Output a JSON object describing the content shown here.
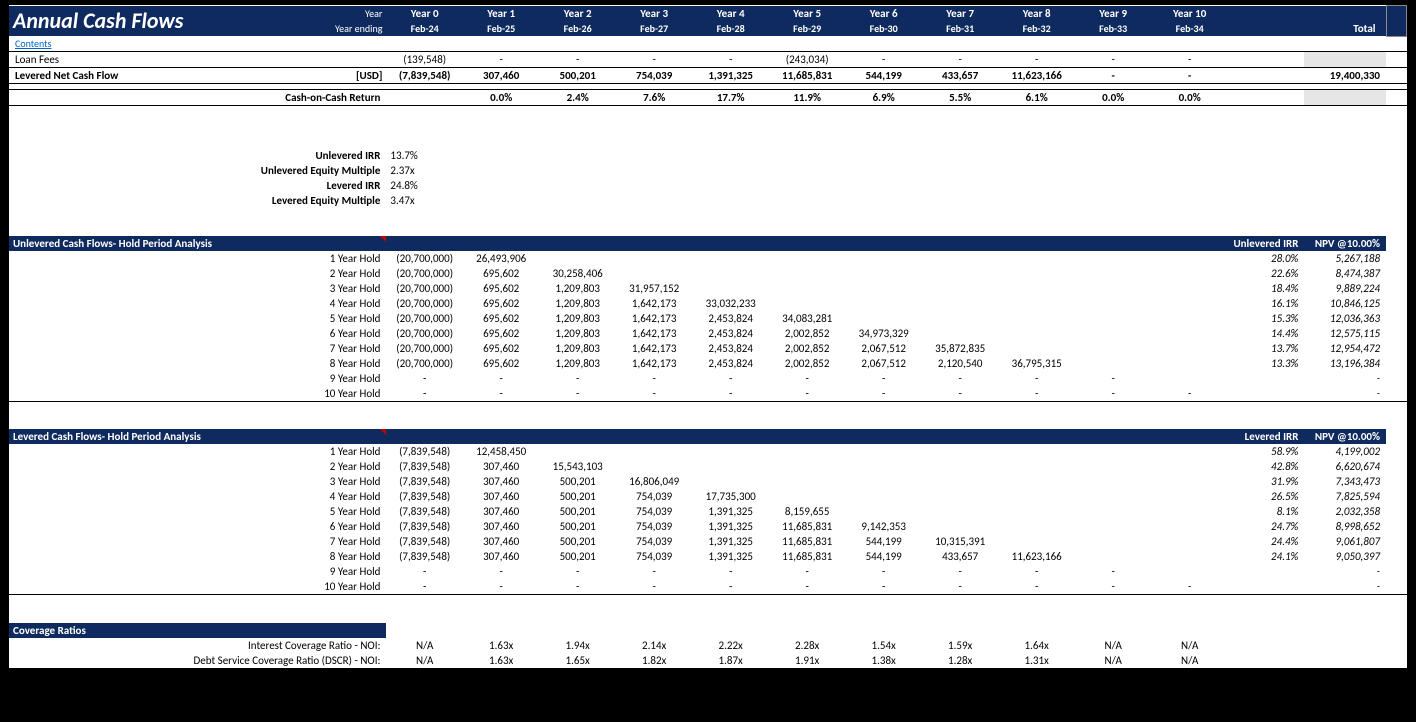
{
  "header": {
    "title": "Annual Cash Flows",
    "year_label": "Year",
    "year_ending_label": "Year ending",
    "contents": "Contents",
    "years": [
      "Year 0",
      "Year 1",
      "Year 2",
      "Year 3",
      "Year 4",
      "Year 5",
      "Year 6",
      "Year 7",
      "Year 8",
      "Year 9",
      "Year 10"
    ],
    "dates": [
      "Feb-24",
      "Feb-25",
      "Feb-26",
      "Feb-27",
      "Feb-28",
      "Feb-29",
      "Feb-30",
      "Feb-31",
      "Feb-32",
      "Feb-33",
      "Feb-34"
    ],
    "total": "Total"
  },
  "loan_fees": {
    "label": "Loan Fees",
    "values": [
      "(139,548)",
      "-",
      "-",
      "-",
      "-",
      "(243,034)",
      "-",
      "-",
      "-",
      "-",
      "-"
    ]
  },
  "levered_ncf": {
    "label": "Levered Net Cash Flow",
    "unit": "[USD]",
    "values": [
      "(7,839,548)",
      "307,460",
      "500,201",
      "754,039",
      "1,391,325",
      "11,685,831",
      "544,199",
      "433,657",
      "11,623,166",
      "-",
      "-"
    ],
    "total": "19,400,330"
  },
  "coc": {
    "label": "Cash-on-Cash Return",
    "values": [
      "",
      "0.0%",
      "2.4%",
      "7.6%",
      "17.7%",
      "11.9%",
      "6.9%",
      "5.5%",
      "6.1%",
      "0.0%",
      "0.0%"
    ]
  },
  "metrics": {
    "unlevered_irr_label": "Unlevered IRR",
    "unlevered_irr": "13.7%",
    "unlevered_em_label": "Unlevered Equity Multiple",
    "unlevered_em": "2.37x",
    "levered_irr_label": "Levered IRR",
    "levered_irr": "24.8%",
    "levered_em_label": "Levered Equity Multiple",
    "levered_em": "3.47x"
  },
  "unlevered_section": {
    "title": "Unlevered Cash Flows- Hold Period Analysis",
    "irr_header": "Unlevered IRR",
    "npv_header": "NPV @10.00%",
    "rows": [
      {
        "label": "1 Year Hold",
        "vals": [
          "(20,700,000)",
          "26,493,906",
          "",
          "",
          "",
          "",
          "",
          "",
          "",
          "",
          ""
        ],
        "irr": "28.0%",
        "npv": "5,267,188"
      },
      {
        "label": "2 Year Hold",
        "vals": [
          "(20,700,000)",
          "695,602",
          "30,258,406",
          "",
          "",
          "",
          "",
          "",
          "",
          "",
          ""
        ],
        "irr": "22.6%",
        "npv": "8,474,387"
      },
      {
        "label": "3 Year Hold",
        "vals": [
          "(20,700,000)",
          "695,602",
          "1,209,803",
          "31,957,152",
          "",
          "",
          "",
          "",
          "",
          "",
          ""
        ],
        "irr": "18.4%",
        "npv": "9,889,224"
      },
      {
        "label": "4 Year Hold",
        "vals": [
          "(20,700,000)",
          "695,602",
          "1,209,803",
          "1,642,173",
          "33,032,233",
          "",
          "",
          "",
          "",
          "",
          ""
        ],
        "irr": "16.1%",
        "npv": "10,846,125"
      },
      {
        "label": "5 Year Hold",
        "vals": [
          "(20,700,000)",
          "695,602",
          "1,209,803",
          "1,642,173",
          "2,453,824",
          "34,083,281",
          "",
          "",
          "",
          "",
          ""
        ],
        "irr": "15.3%",
        "npv": "12,036,363"
      },
      {
        "label": "6 Year Hold",
        "vals": [
          "(20,700,000)",
          "695,602",
          "1,209,803",
          "1,642,173",
          "2,453,824",
          "2,002,852",
          "34,973,329",
          "",
          "",
          "",
          ""
        ],
        "irr": "14.4%",
        "npv": "12,575,115"
      },
      {
        "label": "7 Year Hold",
        "vals": [
          "(20,700,000)",
          "695,602",
          "1,209,803",
          "1,642,173",
          "2,453,824",
          "2,002,852",
          "2,067,512",
          "35,872,835",
          "",
          "",
          ""
        ],
        "irr": "13.7%",
        "npv": "12,954,472"
      },
      {
        "label": "8 Year Hold",
        "vals": [
          "(20,700,000)",
          "695,602",
          "1,209,803",
          "1,642,173",
          "2,453,824",
          "2,002,852",
          "2,067,512",
          "2,120,540",
          "36,795,315",
          "",
          ""
        ],
        "irr": "13.3%",
        "npv": "13,196,384"
      },
      {
        "label": "9 Year Hold",
        "vals": [
          "-",
          "-",
          "-",
          "-",
          "-",
          "-",
          "-",
          "-",
          "-",
          "-",
          ""
        ],
        "irr": "",
        "npv": "-"
      },
      {
        "label": "10 Year Hold",
        "vals": [
          "-",
          "-",
          "-",
          "-",
          "-",
          "-",
          "-",
          "-",
          "-",
          "-",
          "-"
        ],
        "irr": "",
        "npv": "-"
      }
    ]
  },
  "levered_section": {
    "title": "Levered Cash Flows- Hold Period Analysis",
    "irr_header": "Levered IRR",
    "npv_header": "NPV @10.00%",
    "rows": [
      {
        "label": "1 Year Hold",
        "vals": [
          "(7,839,548)",
          "12,458,450",
          "",
          "",
          "",
          "",
          "",
          "",
          "",
          "",
          ""
        ],
        "irr": "58.9%",
        "npv": "4,199,002"
      },
      {
        "label": "2 Year Hold",
        "vals": [
          "(7,839,548)",
          "307,460",
          "15,543,103",
          "",
          "",
          "",
          "",
          "",
          "",
          "",
          ""
        ],
        "irr": "42.8%",
        "npv": "6,620,674"
      },
      {
        "label": "3 Year Hold",
        "vals": [
          "(7,839,548)",
          "307,460",
          "500,201",
          "16,806,049",
          "",
          "",
          "",
          "",
          "",
          "",
          ""
        ],
        "irr": "31.9%",
        "npv": "7,343,473"
      },
      {
        "label": "4 Year Hold",
        "vals": [
          "(7,839,548)",
          "307,460",
          "500,201",
          "754,039",
          "17,735,300",
          "",
          "",
          "",
          "",
          "",
          ""
        ],
        "irr": "26.5%",
        "npv": "7,825,594"
      },
      {
        "label": "5 Year Hold",
        "vals": [
          "(7,839,548)",
          "307,460",
          "500,201",
          "754,039",
          "1,391,325",
          "8,159,655",
          "",
          "",
          "",
          "",
          ""
        ],
        "irr": "8.1%",
        "npv": "2,032,358"
      },
      {
        "label": "6 Year Hold",
        "vals": [
          "(7,839,548)",
          "307,460",
          "500,201",
          "754,039",
          "1,391,325",
          "11,685,831",
          "9,142,353",
          "",
          "",
          "",
          ""
        ],
        "irr": "24.7%",
        "npv": "8,998,652"
      },
      {
        "label": "7 Year Hold",
        "vals": [
          "(7,839,548)",
          "307,460",
          "500,201",
          "754,039",
          "1,391,325",
          "11,685,831",
          "544,199",
          "10,315,391",
          "",
          "",
          ""
        ],
        "irr": "24.4%",
        "npv": "9,061,807"
      },
      {
        "label": "8 Year Hold",
        "vals": [
          "(7,839,548)",
          "307,460",
          "500,201",
          "754,039",
          "1,391,325",
          "11,685,831",
          "544,199",
          "433,657",
          "11,623,166",
          "",
          ""
        ],
        "irr": "24.1%",
        "npv": "9,050,397"
      },
      {
        "label": "9 Year Hold",
        "vals": [
          "-",
          "-",
          "-",
          "-",
          "-",
          "-",
          "-",
          "-",
          "-",
          "-",
          ""
        ],
        "irr": "",
        "npv": "-"
      },
      {
        "label": "10 Year Hold",
        "vals": [
          "-",
          "-",
          "-",
          "-",
          "-",
          "-",
          "-",
          "-",
          "-",
          "-",
          "-"
        ],
        "irr": "",
        "npv": "-"
      }
    ]
  },
  "coverage": {
    "title": "Coverage Ratios",
    "rows": [
      {
        "label": "Interest Coverage Ratio - NOI:",
        "vals": [
          "N/A",
          "1.63x",
          "1.94x",
          "2.14x",
          "2.22x",
          "2.28x",
          "1.54x",
          "1.59x",
          "1.64x",
          "N/A",
          "N/A"
        ]
      },
      {
        "label": "Debt Service Coverage Ratio (DSCR) - NOI:",
        "vals": [
          "N/A",
          "1.63x",
          "1.65x",
          "1.82x",
          "1.87x",
          "1.91x",
          "1.38x",
          "1.28x",
          "1.31x",
          "N/A",
          "N/A"
        ]
      }
    ]
  },
  "colors": {
    "header_bg": "#0f2a5f",
    "gray_bg": "#e6e6e6",
    "link": "#0066cc"
  }
}
